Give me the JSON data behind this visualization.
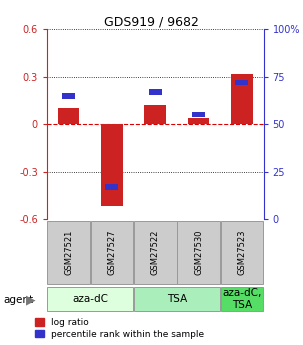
{
  "title": "GDS919 / 9682",
  "samples": [
    "GSM27521",
    "GSM27527",
    "GSM27522",
    "GSM27530",
    "GSM27523"
  ],
  "log_ratios": [
    0.1,
    -0.52,
    0.12,
    0.04,
    0.32
  ],
  "percentile_ranks": [
    65,
    17,
    67,
    55,
    72
  ],
  "ylim": [
    -0.6,
    0.6
  ],
  "yticks_left": [
    -0.6,
    -0.3,
    0,
    0.3,
    0.6
  ],
  "yticks_right": [
    0,
    25,
    50,
    75,
    100
  ],
  "bar_color_red": "#cc2222",
  "bar_color_blue": "#3333cc",
  "groups": [
    {
      "label": "aza-dC",
      "indices": [
        0,
        1
      ],
      "color": "#ddffdd"
    },
    {
      "label": "TSA",
      "indices": [
        2,
        3
      ],
      "color": "#aaeebb"
    },
    {
      "label": "aza-dC,\nTSA",
      "indices": [
        4
      ],
      "color": "#55dd66"
    }
  ],
  "agent_label": "agent",
  "legend_red": "log ratio",
  "legend_blue": "percentile rank within the sample",
  "hline_color": "#dd0000",
  "dotline_color": "black",
  "bar_width": 0.5,
  "blue_bar_width": 0.3,
  "blue_bar_height": 0.035,
  "sample_box_color": "#cccccc",
  "sample_box_border": "#999999",
  "title_fontsize": 9,
  "tick_fontsize": 7,
  "sample_fontsize": 6,
  "group_fontsize": 7.5,
  "legend_fontsize": 6.5
}
